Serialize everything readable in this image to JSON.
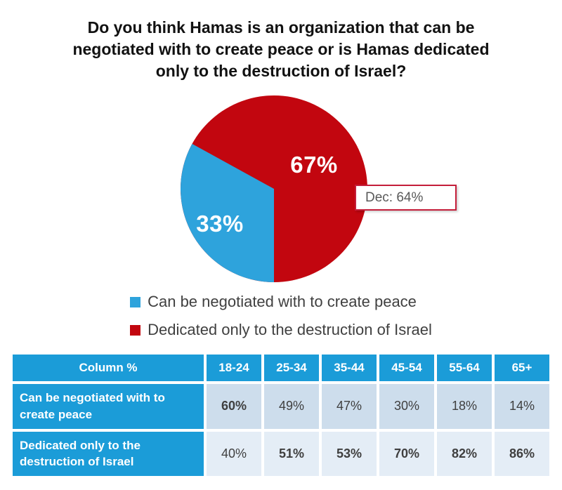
{
  "title": "Do you think Hamas is an organization that can be negotiated with to create peace or is Hamas dedicated only to the destruction of Israel?",
  "colors": {
    "pie_red": "#C2060F",
    "pie_blue": "#2EA3DC",
    "header_blue": "#1B9CD8",
    "band1": "#CDDDEC",
    "band2": "#E4EDF6",
    "callout_border": "#C41E3A",
    "legend_text": "#404040",
    "cell_text": "#3F3F3F"
  },
  "chart_data": [
    {
      "type": "pie",
      "title": "Do you think Hamas is an organization that can be negotiated with to create peace or is Hamas dedicated only to the destruction of Israel?",
      "slices": [
        {
          "label": "Dedicated only to the destruction of Israel",
          "value": 67,
          "data_label": "67%",
          "color": "#C2060F"
        },
        {
          "label": "Can be negotiated with to create peace",
          "value": 33,
          "data_label": "33%",
          "color": "#2EA3DC"
        }
      ],
      "annotation": {
        "text": "Dec: 64%",
        "attached_to": "Dedicated only to the destruction of Israel"
      },
      "legend_position": "bottom",
      "legend": [
        {
          "label": "Can be negotiated with to create peace",
          "color": "#2EA3DC"
        },
        {
          "label": "Dedicated only to the destruction of Israel",
          "color": "#C2060F"
        }
      ],
      "minority_start_angle_deg_from_top_cw": 180
    },
    {
      "type": "table",
      "header": [
        "Column %",
        "18-24",
        "25-34",
        "35-44",
        "45-54",
        "55-64",
        "65+"
      ],
      "rows": [
        {
          "label": "Can be negotiated with to create peace",
          "values": [
            "60%",
            "49%",
            "47%",
            "30%",
            "18%",
            "14%"
          ],
          "bold": [
            true,
            false,
            false,
            false,
            false,
            false
          ]
        },
        {
          "label": "Dedicated only to the destruction of Israel",
          "values": [
            "40%",
            "51%",
            "53%",
            "70%",
            "82%",
            "86%"
          ],
          "bold": [
            false,
            true,
            true,
            true,
            true,
            true
          ]
        }
      ]
    }
  ]
}
